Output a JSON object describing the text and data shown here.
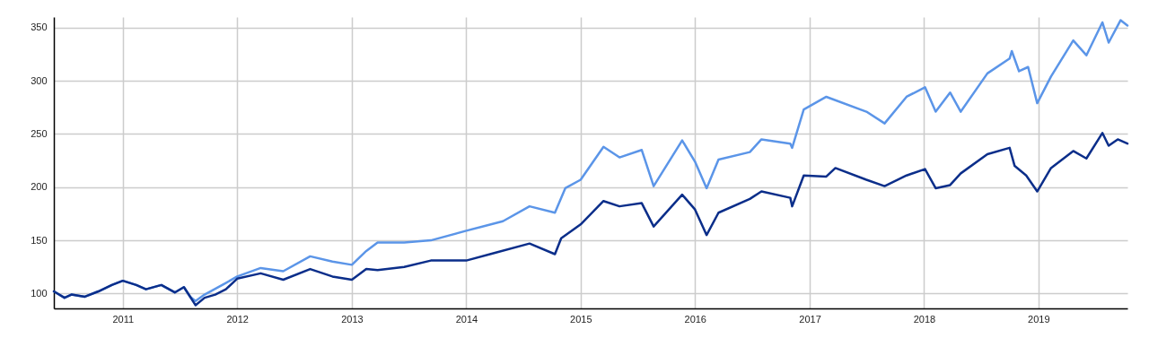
{
  "chart_data": {
    "type": "line",
    "xlim": [
      "2010-05-26",
      "2019-10-12"
    ],
    "ylim": [
      86,
      360
    ],
    "xticks": [
      "2011",
      "2012",
      "2013",
      "2014",
      "2015",
      "2016",
      "2017",
      "2018",
      "2019"
    ],
    "yticks": [
      100,
      150,
      200,
      250,
      300,
      350
    ],
    "grid": true,
    "line_style": "solid",
    "marker": "none",
    "series": [
      {
        "color": "#5b95e8",
        "x": [
          "2010-05-26",
          "2010-06-29",
          "2010-07-21",
          "2010-09-02",
          "2010-10-15",
          "2010-11-27",
          "2011-01-01",
          "2011-02-13",
          "2011-03-16",
          "2011-05-04",
          "2011-06-16",
          "2011-07-15",
          "2011-08-04",
          "2011-08-21",
          "2011-09-19",
          "2011-11-26",
          "2012-01-01",
          "2012-03-16",
          "2012-05-27",
          "2012-08-21",
          "2012-10-31",
          "2013-01-01",
          "2013-02-16",
          "2013-03-24",
          "2013-06-17",
          "2013-09-10",
          "2014-01-01",
          "2014-04-28",
          "2014-07-22",
          "2014-10-11",
          "2014-11-13",
          "2015-01-01",
          "2015-03-15",
          "2015-05-05",
          "2015-07-15",
          "2015-08-22",
          "2015-11-21",
          "2016-01-01",
          "2016-02-07",
          "2016-03-16",
          "2016-06-24",
          "2016-07-31",
          "2016-10-31",
          "2016-11-06",
          "2016-12-13",
          "2017-02-23",
          "2017-07-01",
          "2017-08-28",
          "2017-11-06",
          "2018-01-04",
          "2018-02-07",
          "2018-03-25",
          "2018-04-28",
          "2018-07-22",
          "2018-10-01",
          "2018-10-08",
          "2018-10-31",
          "2018-11-29",
          "2018-12-28",
          "2019-02-10",
          "2019-04-22",
          "2019-06-03",
          "2019-07-24",
          "2019-08-13",
          "2019-09-20",
          "2019-10-12"
        ],
        "values": [
          102,
          96,
          99,
          97,
          102,
          108,
          112,
          108,
          104,
          108,
          101,
          106,
          97,
          93,
          99,
          110,
          116,
          124,
          121,
          135,
          130,
          127,
          140,
          148,
          148,
          150,
          159,
          168,
          182,
          176,
          199,
          207,
          238,
          228,
          235,
          201,
          244,
          224,
          199,
          226,
          233,
          245,
          241,
          237,
          273,
          285,
          271,
          260,
          285,
          294,
          271,
          289,
          271,
          307,
          321,
          328,
          309,
          313,
          279,
          304,
          338,
          324,
          355,
          336,
          357,
          352
        ]
      },
      {
        "color": "#0b2e8a",
        "x": [
          "2010-05-26",
          "2010-06-29",
          "2010-07-21",
          "2010-09-02",
          "2010-10-15",
          "2010-11-27",
          "2011-01-01",
          "2011-02-13",
          "2011-03-16",
          "2011-05-04",
          "2011-06-16",
          "2011-07-15",
          "2011-08-04",
          "2011-08-21",
          "2011-09-19",
          "2011-10-23",
          "2011-11-26",
          "2012-01-01",
          "2012-03-16",
          "2012-05-27",
          "2012-08-21",
          "2012-10-31",
          "2013-01-01",
          "2013-02-16",
          "2013-03-24",
          "2013-06-17",
          "2013-09-10",
          "2014-01-01",
          "2014-03-31",
          "2014-07-22",
          "2014-10-11",
          "2014-10-31",
          "2015-01-01",
          "2015-03-15",
          "2015-05-05",
          "2015-07-15",
          "2015-08-22",
          "2015-11-21",
          "2016-01-01",
          "2016-02-07",
          "2016-03-16",
          "2016-06-24",
          "2016-07-31",
          "2016-10-31",
          "2016-11-06",
          "2016-12-13",
          "2017-02-23",
          "2017-03-24",
          "2017-07-01",
          "2017-08-28",
          "2017-11-06",
          "2018-01-04",
          "2018-02-07",
          "2018-03-25",
          "2018-04-28",
          "2018-07-22",
          "2018-10-01",
          "2018-10-17",
          "2018-11-23",
          "2018-12-28",
          "2019-02-10",
          "2019-04-22",
          "2019-06-03",
          "2019-07-24",
          "2019-08-13",
          "2019-09-11",
          "2019-10-12"
        ],
        "values": [
          102,
          96,
          99,
          97,
          102,
          108,
          112,
          108,
          104,
          108,
          101,
          106,
          97,
          89,
          96,
          99,
          104,
          114,
          119,
          113,
          123,
          116,
          113,
          123,
          122,
          125,
          131,
          131,
          138,
          147,
          137,
          152,
          165,
          187,
          182,
          185,
          163,
          193,
          179,
          155,
          176,
          189,
          196,
          190,
          182,
          211,
          210,
          218,
          207,
          201,
          211,
          217,
          199,
          202,
          213,
          231,
          237,
          220,
          211,
          196,
          218,
          234,
          227,
          251,
          239,
          245,
          241
        ]
      }
    ]
  }
}
